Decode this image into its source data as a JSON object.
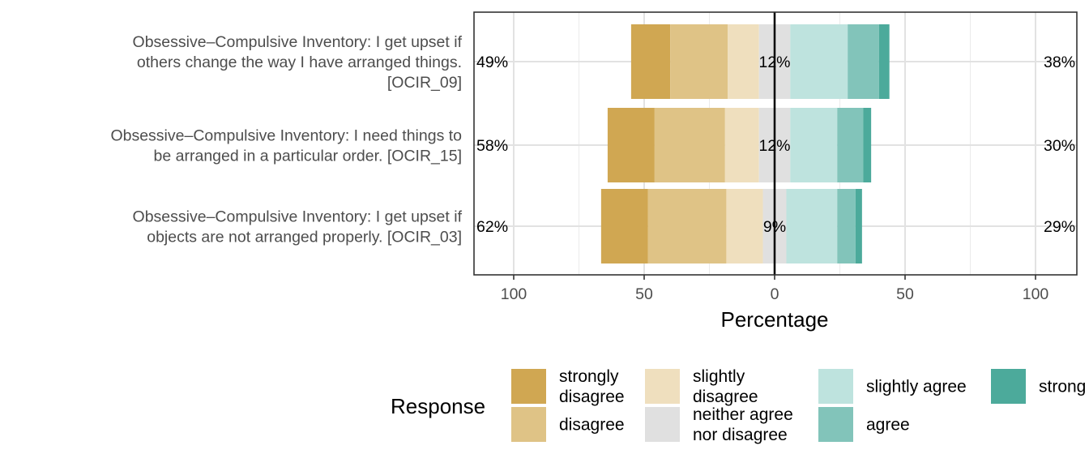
{
  "chart_data": {
    "type": "bar",
    "subtype": "diverging-stacked-likert",
    "xlabel": "Percentage",
    "xlim": [
      -100,
      100
    ],
    "xticks": [
      -100,
      -50,
      0,
      50,
      100
    ],
    "xtick_labels": [
      "100",
      "50",
      "0",
      "50",
      "100"
    ],
    "grid": true,
    "legend": {
      "title": "Response",
      "position": "bottom",
      "entries": [
        {
          "label": "strongly disagree",
          "color": "#D0A752"
        },
        {
          "label": "disagree",
          "color": "#DFC386"
        },
        {
          "label": "slightly disagree",
          "color": "#EFDFBE"
        },
        {
          "label": "neither agree nor disagree",
          "color": "#E0E0E0"
        },
        {
          "label": "slightly agree",
          "color": "#BEE3DE"
        },
        {
          "label": "agree",
          "color": "#82C4BA"
        },
        {
          "label": "strongly agree",
          "color": "#4CAA9B"
        }
      ]
    },
    "categories": [
      "Obsessive–Compulsive Inventory: I get upset if others change the way I have arranged things. [OCIR_09]",
      "Obsessive–Compulsive Inventory: I need things to be arranged in a particular order. [OCIR_15]",
      "Obsessive–Compulsive Inventory: I get upset if objects are not arranged properly. [OCIR_03]"
    ],
    "series": [
      {
        "name": "strongly disagree",
        "values": [
          15,
          18,
          18
        ]
      },
      {
        "name": "disagree",
        "values": [
          22,
          27,
          30
        ]
      },
      {
        "name": "slightly disagree",
        "values": [
          12,
          13,
          14
        ]
      },
      {
        "name": "neither agree nor disagree",
        "values": [
          12,
          12,
          9
        ]
      },
      {
        "name": "slightly agree",
        "values": [
          22,
          18,
          19.5
        ]
      },
      {
        "name": "agree",
        "values": [
          12,
          10,
          7
        ]
      },
      {
        "name": "strongly agree",
        "values": [
          4,
          3,
          2.5
        ]
      }
    ],
    "left_pct_labels": [
      "49%",
      "58%",
      "62%"
    ],
    "center_pct_labels": [
      "12%",
      "12%",
      "9%"
    ],
    "right_pct_labels": [
      "38%",
      "30%",
      "29%"
    ]
  },
  "category_label_lines": [
    [
      "Obsessive–Compulsive Inventory: I get upset if",
      "others change the way I have arranged things.",
      "[OCIR_09]"
    ],
    [
      "Obsessive–Compulsive Inventory: I need things to",
      "be arranged in a particular order. [OCIR_15]"
    ],
    [
      "Obsessive–Compulsive Inventory: I get upset if",
      "objects are not arranged properly. [OCIR_03]"
    ]
  ],
  "legend_label_lines": [
    [
      "strongly",
      "disagree"
    ],
    [
      "disagree"
    ],
    [
      "slightly",
      "disagree"
    ],
    [
      "neither agree",
      "nor disagree"
    ],
    [
      "slightly agree"
    ],
    [
      "agree"
    ],
    [
      "strong"
    ]
  ]
}
